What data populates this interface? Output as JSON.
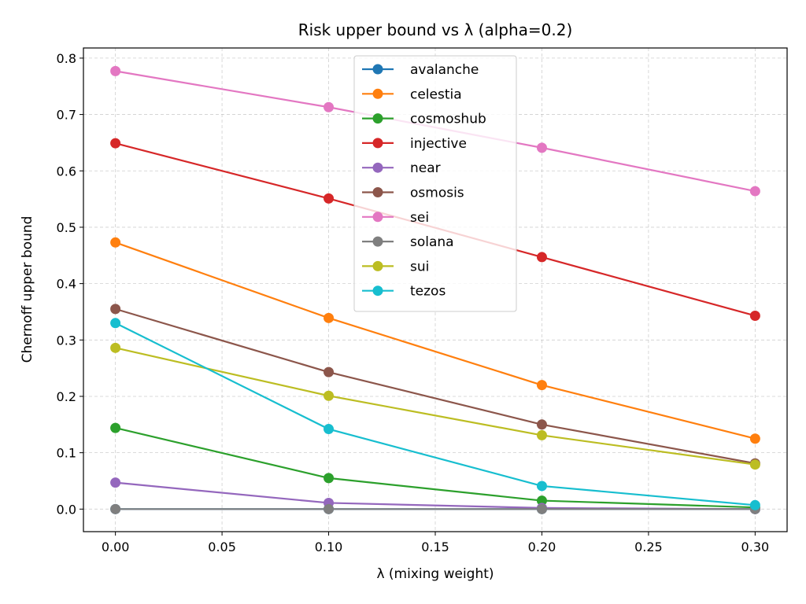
{
  "chart_data": {
    "type": "line",
    "title": "Risk upper bound vs λ (alpha=0.2)",
    "xlabel": "λ (mixing weight)",
    "ylabel": "Chernoff upper bound",
    "x": [
      0.0,
      0.1,
      0.2,
      0.3
    ],
    "xlim": [
      -0.015,
      0.315
    ],
    "ylim": [
      -0.04,
      0.818
    ],
    "xticks": [
      0.0,
      0.05,
      0.1,
      0.15,
      0.2,
      0.25,
      0.3
    ],
    "xtick_labels": [
      "0.00",
      "0.05",
      "0.10",
      "0.15",
      "0.20",
      "0.25",
      "0.30"
    ],
    "yticks": [
      0.0,
      0.1,
      0.2,
      0.3,
      0.4,
      0.5,
      0.6,
      0.7,
      0.8
    ],
    "ytick_labels": [
      "0.0",
      "0.1",
      "0.2",
      "0.3",
      "0.4",
      "0.5",
      "0.6",
      "0.7",
      "0.8"
    ],
    "grid": true,
    "legend_position": "top-center",
    "series": [
      {
        "name": "avalanche",
        "color": "#1f77b4",
        "values": [
          0.0,
          0.0,
          0.0,
          0.0
        ]
      },
      {
        "name": "celestia",
        "color": "#ff7f0e",
        "values": [
          0.473,
          0.339,
          0.22,
          0.125
        ]
      },
      {
        "name": "cosmoshub",
        "color": "#2ca02c",
        "values": [
          0.144,
          0.055,
          0.015,
          0.003
        ]
      },
      {
        "name": "injective",
        "color": "#d62728",
        "values": [
          0.649,
          0.551,
          0.447,
          0.343
        ]
      },
      {
        "name": "near",
        "color": "#9467bd",
        "values": [
          0.047,
          0.011,
          0.002,
          0.0
        ]
      },
      {
        "name": "osmosis",
        "color": "#8c564b",
        "values": [
          0.355,
          0.243,
          0.15,
          0.081
        ]
      },
      {
        "name": "sei",
        "color": "#e377c2",
        "values": [
          0.777,
          0.713,
          0.641,
          0.564
        ]
      },
      {
        "name": "solana",
        "color": "#7f7f7f",
        "values": [
          0.0,
          0.0,
          0.0,
          0.0
        ]
      },
      {
        "name": "sui",
        "color": "#bcbd22",
        "values": [
          0.286,
          0.201,
          0.131,
          0.079
        ]
      },
      {
        "name": "tezos",
        "color": "#17becf",
        "values": [
          0.33,
          0.142,
          0.041,
          0.007
        ]
      }
    ]
  }
}
